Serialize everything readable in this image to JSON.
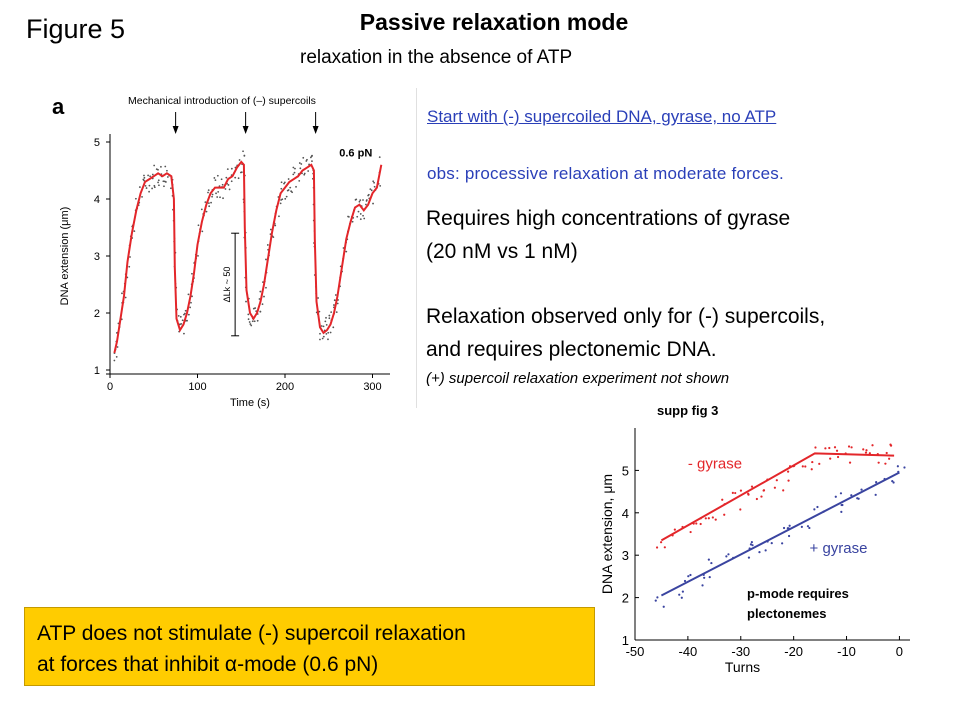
{
  "slide": {
    "figure_label": "Figure 5",
    "title": "Passive relaxation mode",
    "subtitle": "relaxation in the absence of ATP",
    "intro_link": "Start with (-) supercoiled DNA, gyrase, no ATP",
    "obs": "obs: processive relaxation at moderate forces.",
    "req_line1": "Requires high concentrations of gyrase",
    "req_line2": "(20 nM vs 1 nM)",
    "relax_line1": "Relaxation observed only for (-) supercoils,",
    "relax_line2": "and requires plectonemic DNA.",
    "plus_note": "(+) supercoil relaxation experiment not shown",
    "supp_label": "supp fig 3",
    "pmode_line1": "p-mode requires",
    "pmode_line2": "plectonemes",
    "atp_line1": "ATP does not stimulate (-) supercoil relaxation",
    "atp_line2": "at forces that inhibit α-mode (0.6 pN)"
  },
  "colors": {
    "red_trace": "#e3262a",
    "blue_trace": "#3a44a0",
    "link_blue": "#2a3fb8",
    "highlight": "#ffcc00"
  },
  "chart_data": [
    {
      "type": "line",
      "panel_label": "a",
      "annotation_top": "Mechanical introduction of (–) supercoils",
      "force_label": "0.6 pN",
      "delta_lk_label": "ΔLk ~ 50",
      "xlabel": "Time (s)",
      "ylabel": "DNA extension (μm)",
      "xlim": [
        0,
        320
      ],
      "ylim": [
        1,
        5
      ],
      "x_ticks": [
        0,
        100,
        200,
        300
      ],
      "y_ticks": [
        1,
        2,
        3,
        4,
        5
      ],
      "arrow_times": [
        75,
        155,
        235
      ],
      "delta_lk_span": [
        1.6,
        3.4
      ],
      "delta_lk_time": 143,
      "series": [
        {
          "x": [
            5,
            8,
            12,
            16,
            20,
            25,
            30,
            35,
            40,
            45,
            50,
            55,
            60,
            65,
            70,
            73,
            74,
            76,
            80,
            84,
            88,
            92,
            96,
            100,
            105,
            110,
            115,
            120,
            125,
            130,
            135,
            140,
            145,
            150,
            153,
            154,
            156,
            160,
            164,
            168,
            172,
            176,
            180,
            185,
            190,
            195,
            200,
            205,
            210,
            215,
            220,
            225,
            230,
            233,
            234,
            236,
            240,
            244,
            248,
            252,
            256,
            260,
            265,
            270,
            275,
            280,
            285,
            290,
            295,
            300,
            305,
            310
          ],
          "y": [
            1.3,
            1.5,
            1.9,
            2.3,
            2.9,
            3.4,
            3.8,
            4.1,
            4.3,
            4.35,
            4.4,
            4.45,
            4.4,
            4.45,
            4.4,
            4.0,
            2.8,
            1.9,
            1.7,
            1.8,
            2.0,
            2.3,
            2.7,
            3.2,
            3.6,
            3.9,
            4.1,
            4.2,
            4.2,
            4.2,
            4.35,
            4.4,
            4.55,
            4.65,
            4.6,
            3.5,
            2.4,
            2.0,
            1.9,
            2.0,
            2.2,
            2.5,
            2.9,
            3.4,
            3.8,
            4.1,
            4.2,
            4.3,
            4.35,
            4.4,
            4.5,
            4.55,
            4.6,
            4.5,
            3.3,
            2.2,
            1.75,
            1.65,
            1.7,
            1.8,
            2.0,
            2.3,
            2.8,
            3.3,
            3.6,
            3.85,
            3.9,
            3.8,
            3.9,
            4.1,
            4.2,
            4.6
          ]
        }
      ]
    },
    {
      "type": "scatter",
      "annotation_top": "supp fig 3",
      "xlabel": "Turns",
      "ylabel": "DNA extension,  μm",
      "xlim": [
        -50,
        2
      ],
      "ylim": [
        1,
        6
      ],
      "x_ticks": [
        -50,
        -40,
        -30,
        -20,
        -10,
        0
      ],
      "y_ticks": [
        1,
        2,
        3,
        4,
        5
      ],
      "series": [
        {
          "name": "- gyrase",
          "x": [
            -45,
            -42,
            -39,
            -37,
            -35,
            -33,
            -31,
            -29,
            -27,
            -25,
            -23,
            -21,
            -19,
            -17,
            -15,
            -13,
            -11,
            -9,
            -7,
            -5,
            -3,
            -1
          ],
          "y": [
            3.4,
            3.55,
            3.75,
            3.85,
            4.0,
            4.1,
            4.25,
            4.35,
            4.45,
            4.6,
            4.75,
            4.9,
            5.05,
            5.2,
            5.35,
            5.4,
            5.35,
            5.4,
            5.3,
            5.4,
            5.35,
            5.4
          ]
        },
        {
          "name": "+ gyrase",
          "x": [
            -45,
            -42,
            -40,
            -38,
            -35,
            -32,
            -29,
            -27,
            -25,
            -22,
            -20,
            -18,
            -15,
            -12,
            -10,
            -8,
            -5,
            -2,
            0
          ],
          "y": [
            2.0,
            2.2,
            2.35,
            2.5,
            2.7,
            2.85,
            3.05,
            3.2,
            3.3,
            3.5,
            3.65,
            3.8,
            4.0,
            4.2,
            4.3,
            4.45,
            4.6,
            4.85,
            4.95
          ]
        }
      ],
      "fit_lines": [
        {
          "series": "- gyrase",
          "x": [
            -45,
            -16,
            -1
          ],
          "y": [
            3.35,
            5.4,
            5.35
          ]
        },
        {
          "series": "+ gyrase",
          "x": [
            -45,
            0
          ],
          "y": [
            2.05,
            4.95
          ]
        }
      ]
    }
  ]
}
